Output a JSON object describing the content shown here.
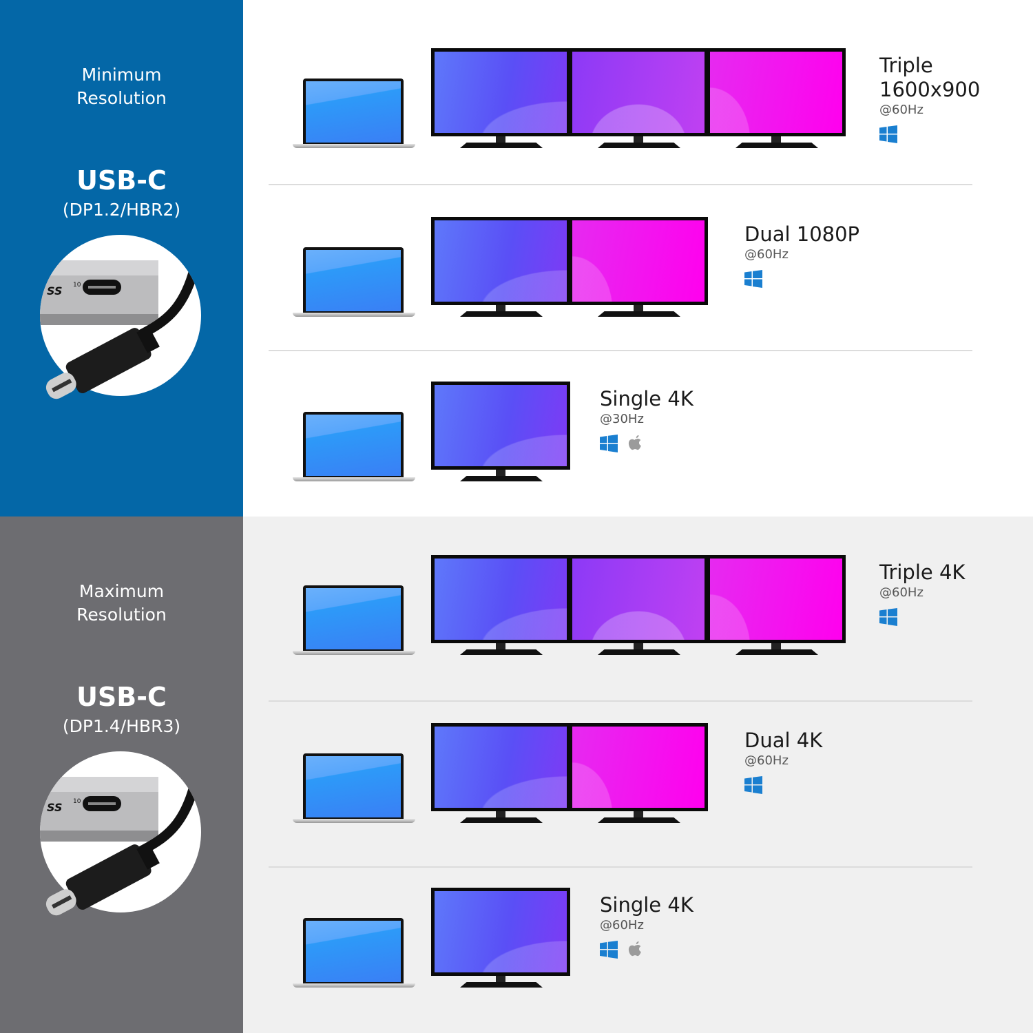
{
  "colors": {
    "top_panel": "#0467a7",
    "bottom_panel": "#6d6d71",
    "top_bg": "#ffffff",
    "bottom_bg": "#f0f0f0",
    "windows": "#1a7fd0",
    "apple": "#9b9b9b"
  },
  "sections": [
    {
      "label": "Minimum Resolution",
      "connector": "USB-C",
      "spec": "(DP1.2/HBR2)",
      "configs": [
        {
          "monitors": 3,
          "title": "Triple 1600x900",
          "refresh": "@60Hz",
          "os": [
            "windows-icon"
          ]
        },
        {
          "monitors": 2,
          "title": "Dual 1080P",
          "refresh": "@60Hz",
          "os": [
            "windows-icon"
          ]
        },
        {
          "monitors": 1,
          "title": "Single 4K",
          "refresh": "@30Hz",
          "os": [
            "windows-icon",
            "apple-icon"
          ]
        }
      ]
    },
    {
      "label": "Maximum Resolution",
      "connector": "USB-C",
      "spec": "(DP1.4/HBR3)",
      "configs": [
        {
          "monitors": 3,
          "title": "Triple 4K",
          "refresh": "@60Hz",
          "os": [
            "windows-icon"
          ]
        },
        {
          "monitors": 2,
          "title": "Dual 4K",
          "refresh": "@60Hz",
          "os": [
            "windows-icon"
          ]
        },
        {
          "monitors": 1,
          "title": "Single 4K",
          "refresh": "@60Hz",
          "os": [
            "windows-icon",
            "apple-icon"
          ]
        }
      ]
    }
  ],
  "cable_image": {
    "port_label": "SS",
    "port_speed": "10"
  }
}
